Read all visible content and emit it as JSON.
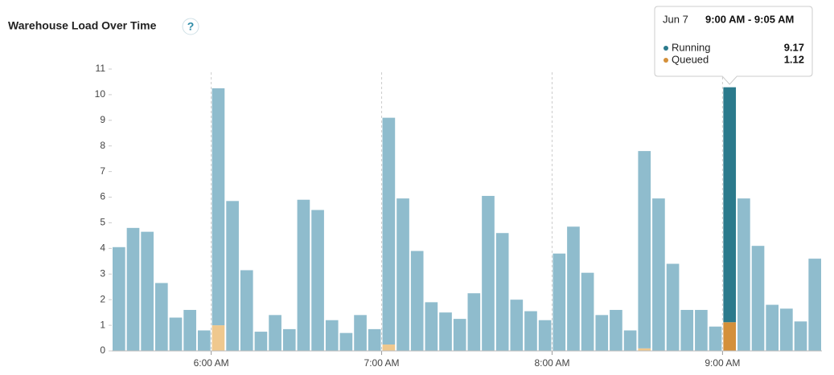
{
  "chart_data": {
    "type": "bar",
    "stacked": true,
    "title": "Warehouse Load Over Time",
    "categories": [
      null,
      null,
      null,
      null,
      null,
      null,
      null,
      "6:00 AM",
      null,
      null,
      null,
      null,
      null,
      null,
      null,
      null,
      null,
      null,
      null,
      "7:00 AM",
      null,
      null,
      null,
      null,
      null,
      null,
      null,
      null,
      null,
      null,
      null,
      "8:00 AM",
      null,
      null,
      null,
      null,
      null,
      null,
      null,
      null,
      null,
      null,
      null,
      "9:00 AM",
      null,
      null,
      null,
      null,
      null,
      null
    ],
    "series": [
      {
        "name": "Running",
        "color": "#8fbccd",
        "highlight_color": "#2b7a8c",
        "values": [
          4.05,
          4.8,
          4.65,
          2.65,
          1.3,
          1.6,
          0.8,
          9.25,
          5.85,
          3.15,
          0.75,
          1.4,
          0.85,
          5.9,
          5.5,
          1.2,
          0.7,
          1.4,
          0.85,
          8.85,
          5.95,
          3.9,
          1.9,
          1.5,
          1.25,
          2.25,
          6.05,
          4.6,
          2.0,
          1.55,
          1.2,
          3.8,
          4.85,
          3.05,
          1.4,
          1.6,
          0.8,
          7.7,
          5.95,
          3.4,
          1.6,
          1.6,
          0.95,
          9.17,
          5.95,
          4.1,
          1.8,
          1.65,
          1.15,
          3.6
        ]
      },
      {
        "name": "Queued",
        "color": "#efc88e",
        "highlight_color": "#d4903a",
        "values": [
          0,
          0,
          0,
          0,
          0,
          0,
          0,
          1.0,
          0,
          0,
          0,
          0,
          0,
          0,
          0,
          0,
          0,
          0,
          0,
          0.25,
          0,
          0,
          0,
          0,
          0,
          0,
          0,
          0,
          0,
          0,
          0,
          0,
          0,
          0,
          0,
          0,
          0,
          0.1,
          0,
          0,
          0,
          0,
          0,
          1.12,
          0,
          0,
          0,
          0,
          0,
          0
        ]
      }
    ],
    "ylim": [
      0,
      11
    ],
    "yticks": [
      0,
      1,
      2,
      3,
      4,
      5,
      6,
      7,
      8,
      9,
      10,
      11
    ],
    "tooltip": {
      "date": "Jun 7",
      "range": "9:00 AM - 9:05 AM"
    }
  }
}
